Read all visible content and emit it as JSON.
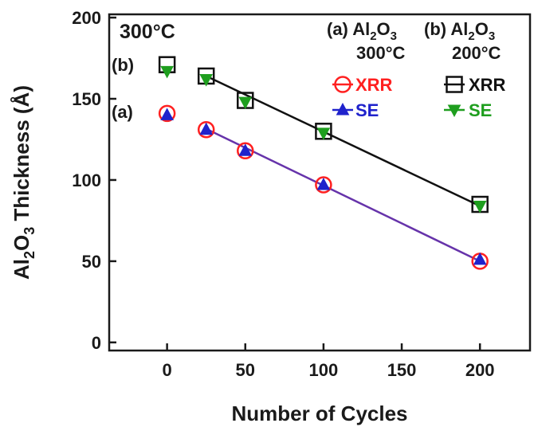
{
  "chart_data": {
    "type": "scatter",
    "title": "300°C",
    "xlabel": "Number of Cycles",
    "ylabel": "Al2O3 Thickness (Å)",
    "ylabel_parts": {
      "a": "Al",
      "sub1": "2",
      "b": "O",
      "sub2": "3",
      "rest": " Thickness (Å)"
    },
    "xlim": [
      -37,
      232
    ],
    "ylim": [
      -5,
      202
    ],
    "xticks": [
      0,
      50,
      100,
      150,
      200
    ],
    "yticks": [
      0,
      50,
      100,
      150,
      200
    ],
    "grid": false,
    "labels": {
      "a": "(a)",
      "b": "(b)"
    },
    "legend_headers": [
      {
        "id": "a",
        "prefix": "(a) ",
        "chem": [
          "Al",
          "2",
          "O",
          "3"
        ],
        "temp": "300°C"
      },
      {
        "id": "b",
        "prefix": "(b) ",
        "chem": [
          "Al",
          "2",
          "O",
          "3"
        ],
        "temp": "200°C"
      }
    ],
    "series": [
      {
        "name": "XRR",
        "group": "a",
        "marker": "circle-open",
        "color": "#ff2020",
        "x": [
          0,
          25,
          50,
          100,
          200
        ],
        "y": [
          141,
          131,
          118,
          97,
          50
        ]
      },
      {
        "name": "SE",
        "group": "a",
        "marker": "triangle-up",
        "color": "#1f22cc",
        "x": [
          0,
          25,
          50,
          100,
          200
        ],
        "y": [
          140,
          131,
          118,
          97,
          51
        ]
      },
      {
        "name": "XRR",
        "group": "b",
        "marker": "square-open",
        "color": "#111111",
        "x": [
          0,
          25,
          50,
          100,
          200
        ],
        "y": [
          171,
          164,
          149,
          130,
          85
        ]
      },
      {
        "name": "SE",
        "group": "b",
        "marker": "triangle-down",
        "color": "#1e9e1e",
        "x": [
          0,
          25,
          50,
          100,
          200
        ],
        "y": [
          167,
          162,
          148,
          129,
          84
        ]
      }
    ],
    "fit_lines": [
      {
        "group": "a",
        "color": "#6633aa",
        "x": [
          25,
          200
        ],
        "y": [
          131.5,
          50
        ]
      },
      {
        "group": "b",
        "color": "#111111",
        "x": [
          25,
          200
        ],
        "y": [
          164,
          84
        ]
      }
    ]
  }
}
